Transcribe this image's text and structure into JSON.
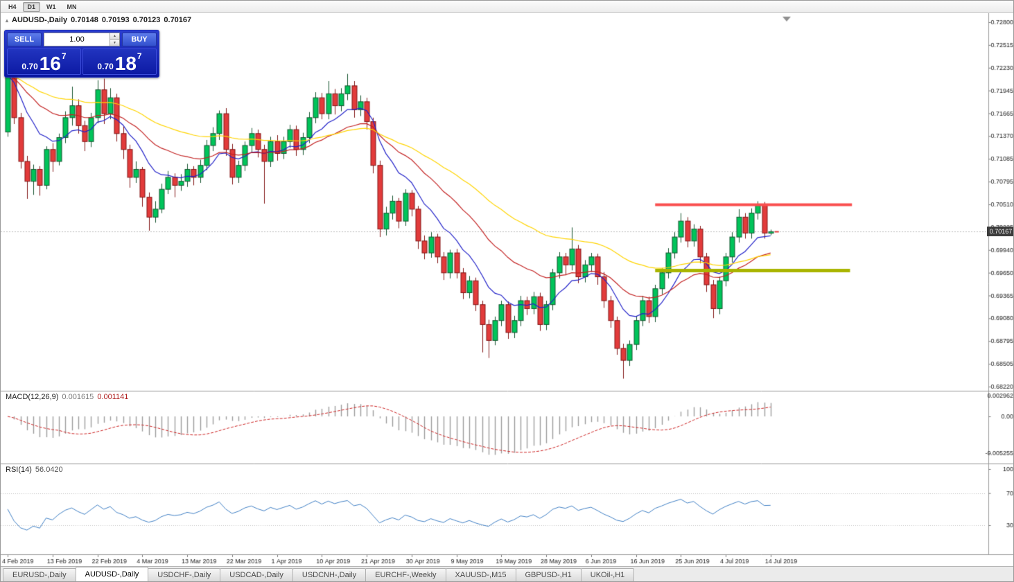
{
  "toolbar": {
    "timeframes": [
      {
        "label": "H4",
        "active": false
      },
      {
        "label": "D1",
        "active": true
      },
      {
        "label": "W1",
        "active": false
      },
      {
        "label": "MN",
        "active": false
      }
    ]
  },
  "chart": {
    "collapse_triangle": "▴",
    "symbol_title": "AUDUSD-,Daily",
    "ohlc": {
      "open": "0.70148",
      "high": "0.70193",
      "low": "0.70123",
      "close": "0.70167"
    },
    "trade_panel": {
      "sell_label": "SELL",
      "buy_label": "BUY",
      "volume": "1.00",
      "spinner_up": "▲",
      "spinner_down": "▼",
      "sell_price": {
        "prefix": "0.70",
        "big": "16",
        "sup": "7"
      },
      "buy_price": {
        "prefix": "0.70",
        "big": "18",
        "sup": "7"
      }
    },
    "price_tag": "0.70167",
    "indicators": {
      "macd": {
        "name": "MACD(12,26,9)",
        "main": "0.001615",
        "signal": "0.001141"
      },
      "rsi": {
        "name": "RSI(14)",
        "value": "56.0420"
      }
    }
  },
  "chart_data": {
    "type": "candlestick",
    "symbol": "AUDUSD-",
    "timeframe": "Daily",
    "ylim": [
      0.6822,
      0.728
    ],
    "price_axis_ticks": [
      "0.72800",
      "0.72515",
      "0.72230",
      "0.71945",
      "0.71665",
      "0.71370",
      "0.71085",
      "0.70795",
      "0.70510",
      "0.70225",
      "0.69940",
      "0.69650",
      "0.69365",
      "0.69080",
      "0.68795",
      "0.68505",
      "0.68220"
    ],
    "date_labels": [
      "4 Feb 2019",
      "13 Feb 2019",
      "22 Feb 2019",
      "4 Mar 2019",
      "13 Mar 2019",
      "22 Mar 2019",
      "1 Apr 2019",
      "10 Apr 2019",
      "21 Apr 2019",
      "30 Apr 2019",
      "9 May 2019",
      "19 May 2019",
      "28 May 2019",
      "6 Jun 2019",
      "16 Jun 2019",
      "25 Jun 2019",
      "4 Jul 2019",
      "14 Jul 2019"
    ],
    "candles_per_label": 7,
    "current_bid": 0.70167,
    "lines": {
      "resistance": {
        "price": 0.7051,
        "color": "#f94f4f",
        "width": 4,
        "from_index": 101,
        "to_index": 131.7
      },
      "support": {
        "price": 0.6968,
        "color": "#a9b400",
        "width": 5,
        "from_index": 101,
        "to_index": 131.4
      }
    },
    "moving_averages": [
      {
        "type": "ema",
        "period": 10,
        "color": "#2121c8"
      },
      {
        "type": "ema",
        "period": 24,
        "color": "#c22121"
      },
      {
        "type": "ema",
        "period": 48,
        "color": "#ffd400"
      }
    ],
    "macd": {
      "fast": 12,
      "slow": 26,
      "signal": 9,
      "axis_ticks": [
        "0.002962",
        "0.00",
        "-0.005255"
      ],
      "histogram_color": "#9c9c9c",
      "signal_color": "#cc2222"
    },
    "rsi": {
      "period": 14,
      "levels": [
        70,
        30
      ],
      "axis_ticks": [
        "100",
        "70",
        "30"
      ],
      "color": "#3f7fc4"
    },
    "candle_colors": {
      "up_fill": "#00c45a",
      "up_border": "#15532e",
      "down_fill": "#e23b3b",
      "down_border": "#801414"
    },
    "candles_ohlc": [
      [
        0.7142,
        0.7221,
        0.7136,
        0.7214
      ],
      [
        0.7214,
        0.7218,
        0.7152,
        0.716
      ],
      [
        0.716,
        0.7166,
        0.7096,
        0.7105
      ],
      [
        0.7105,
        0.7112,
        0.7058,
        0.708
      ],
      [
        0.708,
        0.7101,
        0.7063,
        0.7095
      ],
      [
        0.7095,
        0.7099,
        0.7062,
        0.7075
      ],
      [
        0.7075,
        0.7124,
        0.707,
        0.712
      ],
      [
        0.712,
        0.7128,
        0.7092,
        0.7105
      ],
      [
        0.7105,
        0.714,
        0.71,
        0.7135
      ],
      [
        0.7135,
        0.7168,
        0.7128,
        0.716
      ],
      [
        0.716,
        0.7199,
        0.715,
        0.7175
      ],
      [
        0.7175,
        0.7183,
        0.714,
        0.715
      ],
      [
        0.715,
        0.7156,
        0.7118,
        0.713
      ],
      [
        0.713,
        0.7166,
        0.7123,
        0.716
      ],
      [
        0.716,
        0.7207,
        0.7153,
        0.7195
      ],
      [
        0.7195,
        0.7209,
        0.7152,
        0.7165
      ],
      [
        0.7165,
        0.7197,
        0.7158,
        0.7185
      ],
      [
        0.7185,
        0.719,
        0.713,
        0.714
      ],
      [
        0.714,
        0.7149,
        0.7108,
        0.712
      ],
      [
        0.712,
        0.7126,
        0.7072,
        0.7085
      ],
      [
        0.7085,
        0.7105,
        0.7078,
        0.7095
      ],
      [
        0.7095,
        0.7098,
        0.7048,
        0.706
      ],
      [
        0.706,
        0.7066,
        0.7018,
        0.7035
      ],
      [
        0.7035,
        0.7055,
        0.7028,
        0.7045
      ],
      [
        0.7045,
        0.7077,
        0.704,
        0.707
      ],
      [
        0.707,
        0.7093,
        0.7064,
        0.7085
      ],
      [
        0.7085,
        0.709,
        0.706,
        0.7075
      ],
      [
        0.7075,
        0.7089,
        0.7068,
        0.708
      ],
      [
        0.708,
        0.7102,
        0.7073,
        0.7095
      ],
      [
        0.7095,
        0.7099,
        0.7075,
        0.7085
      ],
      [
        0.7085,
        0.7107,
        0.7078,
        0.71
      ],
      [
        0.71,
        0.7132,
        0.7094,
        0.7125
      ],
      [
        0.7125,
        0.7148,
        0.7118,
        0.714
      ],
      [
        0.714,
        0.7169,
        0.7132,
        0.7165
      ],
      [
        0.7165,
        0.7172,
        0.7112,
        0.712
      ],
      [
        0.712,
        0.7127,
        0.7076,
        0.7085
      ],
      [
        0.7085,
        0.7106,
        0.7078,
        0.71
      ],
      [
        0.71,
        0.713,
        0.7093,
        0.7125
      ],
      [
        0.7125,
        0.7147,
        0.7117,
        0.714
      ],
      [
        0.714,
        0.7145,
        0.711,
        0.712
      ],
      [
        0.712,
        0.7126,
        0.7052,
        0.7105
      ],
      [
        0.7105,
        0.7136,
        0.7098,
        0.713
      ],
      [
        0.713,
        0.7138,
        0.7106,
        0.7115
      ],
      [
        0.7115,
        0.7136,
        0.7108,
        0.713
      ],
      [
        0.713,
        0.7151,
        0.7122,
        0.7145
      ],
      [
        0.7145,
        0.715,
        0.7112,
        0.712
      ],
      [
        0.712,
        0.7141,
        0.7113,
        0.7135
      ],
      [
        0.7135,
        0.7167,
        0.7128,
        0.716
      ],
      [
        0.716,
        0.7192,
        0.7153,
        0.7185
      ],
      [
        0.7185,
        0.7191,
        0.7158,
        0.7165
      ],
      [
        0.7165,
        0.7206,
        0.7158,
        0.719
      ],
      [
        0.719,
        0.7196,
        0.7164,
        0.7175
      ],
      [
        0.7175,
        0.7197,
        0.7168,
        0.719
      ],
      [
        0.719,
        0.7215,
        0.7182,
        0.72
      ],
      [
        0.72,
        0.7206,
        0.716,
        0.717
      ],
      [
        0.717,
        0.7188,
        0.7162,
        0.718
      ],
      [
        0.718,
        0.7185,
        0.7145,
        0.7155
      ],
      [
        0.7155,
        0.716,
        0.709,
        0.71
      ],
      [
        0.71,
        0.7106,
        0.701,
        0.702
      ],
      [
        0.702,
        0.7048,
        0.7012,
        0.704
      ],
      [
        0.704,
        0.7062,
        0.7032,
        0.7055
      ],
      [
        0.7055,
        0.7059,
        0.7021,
        0.703
      ],
      [
        0.703,
        0.707,
        0.7024,
        0.7065
      ],
      [
        0.7065,
        0.7069,
        0.7036,
        0.7045
      ],
      [
        0.7045,
        0.7049,
        0.6995,
        0.7005
      ],
      [
        0.7005,
        0.7012,
        0.6982,
        0.699
      ],
      [
        0.699,
        0.7016,
        0.6984,
        0.701
      ],
      [
        0.701,
        0.7014,
        0.6977,
        0.6985
      ],
      [
        0.6985,
        0.6991,
        0.6956,
        0.6965
      ],
      [
        0.6965,
        0.6994,
        0.6958,
        0.699
      ],
      [
        0.699,
        0.6995,
        0.6958,
        0.6965
      ],
      [
        0.6965,
        0.6971,
        0.6932,
        0.694
      ],
      [
        0.694,
        0.6961,
        0.6933,
        0.6955
      ],
      [
        0.6955,
        0.6959,
        0.6917,
        0.6925
      ],
      [
        0.6925,
        0.693,
        0.6865,
        0.69
      ],
      [
        0.69,
        0.6906,
        0.6858,
        0.688
      ],
      [
        0.688,
        0.691,
        0.6874,
        0.6905
      ],
      [
        0.6905,
        0.693,
        0.6898,
        0.6925
      ],
      [
        0.6925,
        0.6929,
        0.6882,
        0.689
      ],
      [
        0.689,
        0.6911,
        0.6883,
        0.6905
      ],
      [
        0.6905,
        0.6936,
        0.6898,
        0.693
      ],
      [
        0.693,
        0.6935,
        0.6912,
        0.692
      ],
      [
        0.692,
        0.6941,
        0.6913,
        0.6935
      ],
      [
        0.6935,
        0.694,
        0.6892,
        0.69
      ],
      [
        0.69,
        0.693,
        0.6893,
        0.6925
      ],
      [
        0.6925,
        0.697,
        0.6918,
        0.6965
      ],
      [
        0.6965,
        0.6991,
        0.6958,
        0.6985
      ],
      [
        0.6985,
        0.699,
        0.6962,
        0.6975
      ],
      [
        0.6975,
        0.7022,
        0.6968,
        0.6995
      ],
      [
        0.6995,
        0.7,
        0.6952,
        0.696
      ],
      [
        0.696,
        0.6981,
        0.6953,
        0.6975
      ],
      [
        0.6975,
        0.699,
        0.6966,
        0.6985
      ],
      [
        0.6985,
        0.6989,
        0.695,
        0.696
      ],
      [
        0.696,
        0.6966,
        0.6921,
        0.693
      ],
      [
        0.693,
        0.6936,
        0.6896,
        0.6905
      ],
      [
        0.6905,
        0.691,
        0.6862,
        0.687
      ],
      [
        0.687,
        0.6876,
        0.6832,
        0.6855
      ],
      [
        0.6855,
        0.688,
        0.6848,
        0.6875
      ],
      [
        0.6875,
        0.691,
        0.6868,
        0.6905
      ],
      [
        0.6905,
        0.6936,
        0.6898,
        0.693
      ],
      [
        0.693,
        0.6935,
        0.6902,
        0.691
      ],
      [
        0.691,
        0.695,
        0.6903,
        0.6945
      ],
      [
        0.6945,
        0.6971,
        0.6938,
        0.6965
      ],
      [
        0.6965,
        0.6996,
        0.6958,
        0.699
      ],
      [
        0.699,
        0.7016,
        0.6983,
        0.701
      ],
      [
        0.701,
        0.704,
        0.7003,
        0.703
      ],
      [
        0.703,
        0.7035,
        0.6997,
        0.7005
      ],
      [
        0.7005,
        0.7026,
        0.6998,
        0.702
      ],
      [
        0.702,
        0.7024,
        0.6977,
        0.6985
      ],
      [
        0.6985,
        0.699,
        0.6941,
        0.695
      ],
      [
        0.695,
        0.6956,
        0.6908,
        0.692
      ],
      [
        0.692,
        0.696,
        0.6913,
        0.6955
      ],
      [
        0.6955,
        0.699,
        0.6948,
        0.6985
      ],
      [
        0.6985,
        0.7016,
        0.6978,
        0.701
      ],
      [
        0.701,
        0.7045,
        0.7003,
        0.7035
      ],
      [
        0.7035,
        0.704,
        0.7008,
        0.7015
      ],
      [
        0.7015,
        0.7046,
        0.7008,
        0.704
      ],
      [
        0.704,
        0.7055,
        0.7032,
        0.705
      ],
      [
        0.705,
        0.7054,
        0.7008,
        0.7015
      ],
      [
        0.70148,
        0.70193,
        0.70123,
        0.70167
      ]
    ]
  },
  "tabs": [
    {
      "label": "EURUSD-,Daily",
      "active": false
    },
    {
      "label": "AUDUSD-,Daily",
      "active": true
    },
    {
      "label": "USDCHF-,Daily",
      "active": false
    },
    {
      "label": "USDCAD-,Daily",
      "active": false
    },
    {
      "label": "USDCNH-,Daily",
      "active": false
    },
    {
      "label": "EURCHF-,Weekly",
      "active": false
    },
    {
      "label": "XAUUSD-,M15",
      "active": false
    },
    {
      "label": "GBPUSD-,H1",
      "active": false
    },
    {
      "label": "UKOil-,H1",
      "active": false
    }
  ]
}
